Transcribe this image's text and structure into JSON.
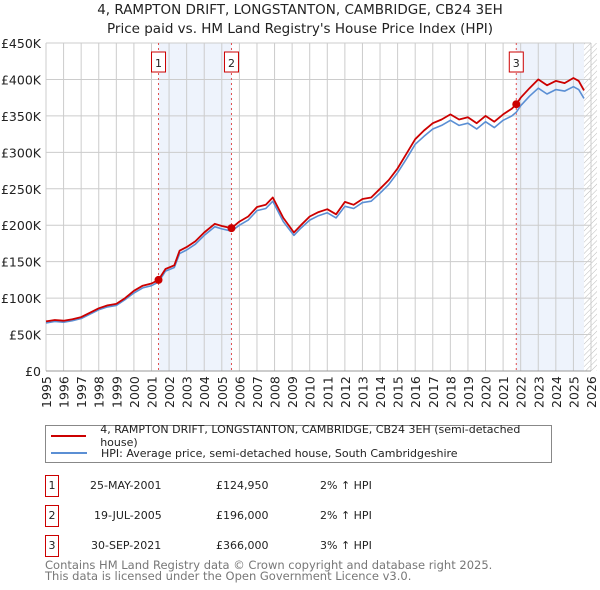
{
  "title": "4, RAMPTON DRIFT, LONGSTANTON, CAMBRIDGE, CB24 3EH",
  "subtitle": "Price paid vs. HM Land Registry's House Price Index (HPI)",
  "colors": {
    "price": "#cc0000",
    "hpi": "#5b8fd4",
    "shade": "#eef3fc",
    "grid": "#cccccc"
  },
  "chart_data": {
    "type": "line",
    "title": "4, RAMPTON DRIFT, LONGSTANTON, CAMBRIDGE, CB24 3EH",
    "ylim": [
      0,
      450000
    ],
    "xlim": [
      1995,
      2026
    ],
    "yticks": [
      "£0",
      "£50K",
      "£100K",
      "£150K",
      "£200K",
      "£250K",
      "£300K",
      "£350K",
      "£400K",
      "£450K"
    ],
    "xticks": [
      "1995",
      "1996",
      "1997",
      "1998",
      "1999",
      "2000",
      "2001",
      "2002",
      "2003",
      "2004",
      "2005",
      "2006",
      "2007",
      "2008",
      "2009",
      "2010",
      "2011",
      "2012",
      "2013",
      "2014",
      "2015",
      "2016",
      "2017",
      "2018",
      "2019",
      "2020",
      "2021",
      "2022",
      "2023",
      "2024",
      "2025",
      "2026"
    ],
    "series": [
      {
        "name": "4, RAMPTON DRIFT, LONGSTANTON, CAMBRIDGE, CB24 3EH (semi-detached house)",
        "x": [
          1995,
          1995.5,
          1996,
          1996.5,
          1997,
          1997.5,
          1998,
          1998.5,
          1999,
          1999.5,
          2000,
          2000.5,
          2001,
          2001.4,
          2001.8,
          2002.3,
          2002.6,
          2003,
          2003.5,
          2004,
          2004.6,
          2005,
          2005.55,
          2006,
          2006.5,
          2007,
          2007.5,
          2007.9,
          2008.5,
          2009.1,
          2009.5,
          2010,
          2010.5,
          2011,
          2011.5,
          2012,
          2012.5,
          2013,
          2013.5,
          2014,
          2014.5,
          2015,
          2015.5,
          2016,
          2016.5,
          2017,
          2017.5,
          2018,
          2018.5,
          2019,
          2019.5,
          2020,
          2020.5,
          2021,
          2021.5,
          2021.75,
          2022,
          2022.5,
          2023,
          2023.5,
          2024,
          2024.5,
          2025,
          2025.3,
          2025.6
        ],
        "values": [
          68000,
          70000,
          69000,
          71000,
          74000,
          80000,
          86000,
          90000,
          92000,
          100000,
          110000,
          117000,
          120000,
          124950,
          140000,
          145000,
          165000,
          170000,
          178000,
          190000,
          202000,
          199000,
          196000,
          205000,
          212000,
          225000,
          228000,
          238000,
          210000,
          190000,
          200000,
          212000,
          218000,
          222000,
          215000,
          232000,
          228000,
          236000,
          238000,
          250000,
          262000,
          278000,
          298000,
          318000,
          330000,
          340000,
          345000,
          352000,
          345000,
          348000,
          340000,
          350000,
          342000,
          352000,
          360000,
          366000,
          375000,
          388000,
          400000,
          392000,
          398000,
          395000,
          402000,
          398000,
          385000
        ]
      },
      {
        "name": "HPI: Average price, semi-detached house, South Cambridgeshire",
        "x": [
          1995,
          1995.5,
          1996,
          1996.5,
          1997,
          1997.5,
          1998,
          1998.5,
          1999,
          1999.5,
          2000,
          2000.5,
          2001,
          2001.4,
          2001.8,
          2002.3,
          2002.6,
          2003,
          2003.5,
          2004,
          2004.6,
          2005,
          2005.55,
          2006,
          2006.5,
          2007,
          2007.5,
          2007.9,
          2008.5,
          2009.1,
          2009.5,
          2010,
          2010.5,
          2011,
          2011.5,
          2012,
          2012.5,
          2013,
          2013.5,
          2014,
          2014.5,
          2015,
          2015.5,
          2016,
          2016.5,
          2017,
          2017.5,
          2018,
          2018.5,
          2019,
          2019.5,
          2020,
          2020.5,
          2021,
          2021.5,
          2021.75,
          2022,
          2022.5,
          2023,
          2023.5,
          2024,
          2024.5,
          2025,
          2025.3,
          2025.6
        ],
        "values": [
          66000,
          68000,
          67000,
          69000,
          72000,
          78000,
          84000,
          88000,
          90000,
          98000,
          107000,
          114000,
          117000,
          122000,
          137000,
          142000,
          161000,
          166000,
          174000,
          186000,
          198000,
          195000,
          192000,
          200000,
          207000,
          220000,
          223000,
          233000,
          205000,
          186000,
          196000,
          207000,
          213000,
          217000,
          210000,
          226000,
          223000,
          231000,
          233000,
          244000,
          256000,
          272000,
          291000,
          311000,
          322000,
          332000,
          337000,
          344000,
          337000,
          340000,
          332000,
          342000,
          334000,
          344000,
          350000,
          355000,
          364000,
          377000,
          388000,
          380000,
          386000,
          384000,
          390000,
          386000,
          374000
        ]
      }
    ],
    "sales": [
      {
        "label": "1",
        "x": 2001.4,
        "value": 124950
      },
      {
        "label": "2",
        "x": 2005.55,
        "value": 196000
      },
      {
        "label": "3",
        "x": 2021.75,
        "value": 366000
      }
    ]
  },
  "legend": {
    "price": "4, RAMPTON DRIFT, LONGSTANTON, CAMBRIDGE, CB24 3EH (semi-detached house)",
    "hpi": "HPI: Average price, semi-detached house, South Cambridgeshire"
  },
  "transactions": [
    {
      "num": "1",
      "date": "25-MAY-2001",
      "price": "£124,950",
      "hpi": "2% ↑ HPI"
    },
    {
      "num": "2",
      "date": "19-JUL-2005",
      "price": "£196,000",
      "hpi": "2% ↑ HPI"
    },
    {
      "num": "3",
      "date": "30-SEP-2021",
      "price": "£366,000",
      "hpi": "3% ↑ HPI"
    }
  ],
  "footer": {
    "line1": "Contains HM Land Registry data © Crown copyright and database right 2025.",
    "line2": "This data is licensed under the Open Government Licence v3.0."
  }
}
